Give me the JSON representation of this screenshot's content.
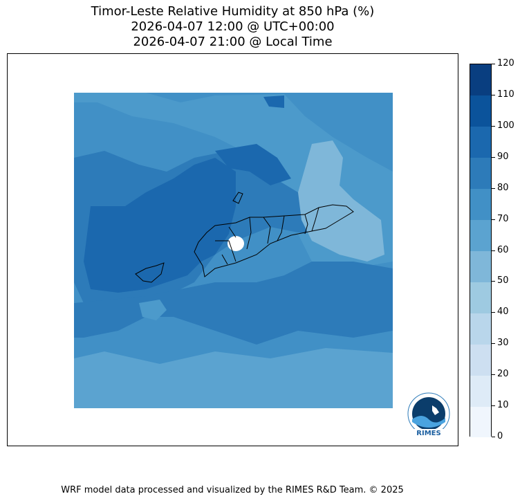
{
  "title": {
    "line1": "Timor-Leste Relative Humidity at 850 hPa (%)",
    "line2": "2026-04-07 12:00 @ UTC+00:00",
    "line3": "2026-04-07 21:00 @ Local Time"
  },
  "colorbar": {
    "levels": [
      0,
      10,
      20,
      30,
      40,
      50,
      60,
      70,
      80,
      90,
      100,
      110,
      120
    ],
    "labels": [
      "0",
      "10",
      "20",
      "30",
      "40",
      "50",
      "60",
      "70",
      "80",
      "90",
      "100",
      "110",
      "120"
    ],
    "colors": [
      "#f0f6fd",
      "#deebf7",
      "#cddff1",
      "#b9d6eb",
      "#9ecae1",
      "#7fb7d9",
      "#5ba3d0",
      "#4190c6",
      "#2d7bb9",
      "#1b68ae",
      "#0b539b",
      "#093e80"
    ]
  },
  "map": {
    "background_color": "#4190c6",
    "outline_color": "#000000"
  },
  "logo": {
    "text": "RIMES",
    "ring_text": "Regional Integrated Multi-Hazard Early Warning System"
  },
  "footer": {
    "text": "WRF model data processed and visualized by the RIMES R&D Team. © 2025"
  }
}
